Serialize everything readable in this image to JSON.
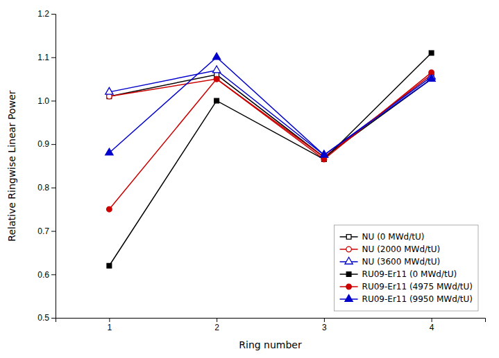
{
  "chart_data": {
    "type": "line",
    "x": [
      1,
      2,
      3,
      4
    ],
    "series": [
      {
        "name": "NU (0 MWd/tU)",
        "color": "#000000",
        "marker": "square-open",
        "values": [
          1.01,
          1.06,
          0.87,
          1.05
        ]
      },
      {
        "name": "NU (2000 MWd/tU)",
        "color": "#cc0000",
        "marker": "circle-open",
        "values": [
          1.01,
          1.05,
          0.87,
          1.06
        ]
      },
      {
        "name": "NU (3600 MWd/tU)",
        "color": "#0000cc",
        "marker": "triangle-open",
        "values": [
          1.02,
          1.07,
          0.875,
          1.055
        ]
      },
      {
        "name": "RU09-Er11 (0 MWd/tU)",
        "color": "#000000",
        "marker": "square",
        "values": [
          0.62,
          1.0,
          0.865,
          1.11
        ]
      },
      {
        "name": "RU09-Er11 (4975 MWd/tU)",
        "color": "#cc0000",
        "marker": "circle",
        "values": [
          0.75,
          1.05,
          0.865,
          1.065
        ]
      },
      {
        "name": "RU09-Er11 (9950 MWd/tU)",
        "color": "#0000cc",
        "marker": "triangle",
        "values": [
          0.88,
          1.1,
          0.875,
          1.05
        ]
      }
    ],
    "x_label": "Ring number",
    "y_label": "Relative Ringwise Linear Power",
    "xlim": [
      0.5,
      4.5
    ],
    "ylim": [
      0.5,
      1.2
    ],
    "xticks": [
      1,
      2,
      3,
      4
    ],
    "yticks": [
      0.5,
      0.6,
      0.7,
      0.8,
      0.9,
      {
        "value": 1.0,
        "label": "1.0"
      },
      1.1,
      1.2
    ],
    "legend": "lower right",
    "grid": false
  }
}
